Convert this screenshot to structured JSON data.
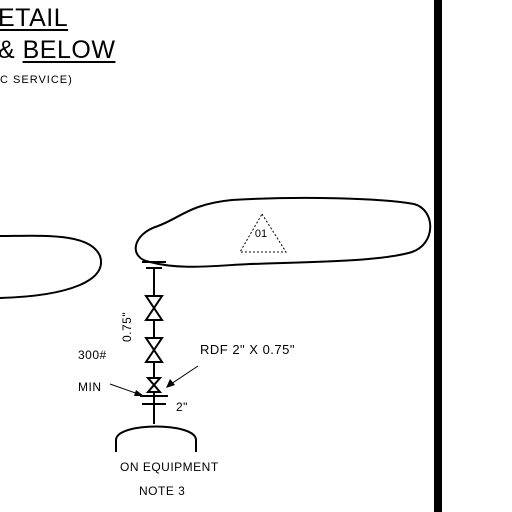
{
  "title": {
    "line1": "ETAIL",
    "line2_prefix": "& ",
    "line2": "BELOW",
    "line3": "IC SERVICE)"
  },
  "labels": {
    "rating": "300#",
    "min": "MIN",
    "reducer": "RDF 2\" X 0.75\"",
    "pipe_size": "2\"",
    "branch_size": "0.75\"",
    "equipment": "ON EQUIPMENT",
    "note": "NOTE 3"
  },
  "tag": {
    "number": "01"
  }
}
